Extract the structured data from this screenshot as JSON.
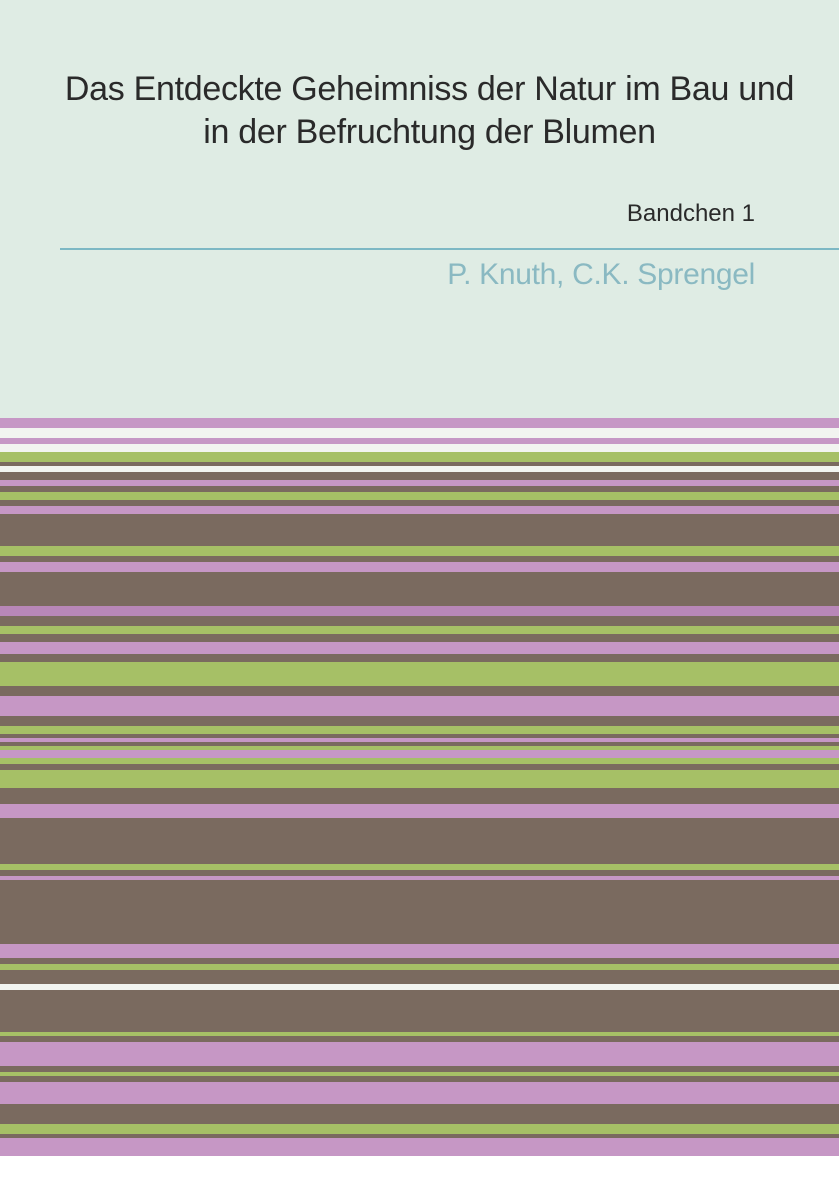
{
  "cover": {
    "title": "Das Entdeckte Geheimniss der Natur im Bau und in der Befruchtung der Blumen",
    "subtitle": "Bandchen 1",
    "authors": "P. Knuth, C.K. Sprengel",
    "top_background": "#dfece4",
    "divider_color": "#7db8c4",
    "title_color": "#2a2a2a",
    "subtitle_color": "#2a2a2a",
    "authors_color": "#8ab9c2",
    "title_fontsize": 34,
    "subtitle_fontsize": 24,
    "authors_fontsize": 30
  },
  "stripes": {
    "colors": {
      "pink": "#c697c5",
      "white": "#f2f4f0",
      "green": "#a6c066",
      "brown": "#7a6a5f",
      "purple": "#b887b8"
    },
    "pattern": [
      {
        "c": "pink",
        "h": 10
      },
      {
        "c": "white",
        "h": 10
      },
      {
        "c": "pink",
        "h": 6
      },
      {
        "c": "white",
        "h": 8
      },
      {
        "c": "green",
        "h": 10
      },
      {
        "c": "brown",
        "h": 4
      },
      {
        "c": "white",
        "h": 6
      },
      {
        "c": "brown",
        "h": 8
      },
      {
        "c": "pink",
        "h": 6
      },
      {
        "c": "brown",
        "h": 6
      },
      {
        "c": "green",
        "h": 8
      },
      {
        "c": "brown",
        "h": 6
      },
      {
        "c": "pink",
        "h": 8
      },
      {
        "c": "brown",
        "h": 32
      },
      {
        "c": "green",
        "h": 10
      },
      {
        "c": "brown",
        "h": 6
      },
      {
        "c": "pink",
        "h": 10
      },
      {
        "c": "brown",
        "h": 34
      },
      {
        "c": "purple",
        "h": 10
      },
      {
        "c": "brown",
        "h": 10
      },
      {
        "c": "green",
        "h": 8
      },
      {
        "c": "brown",
        "h": 8
      },
      {
        "c": "pink",
        "h": 12
      },
      {
        "c": "brown",
        "h": 8
      },
      {
        "c": "green",
        "h": 24
      },
      {
        "c": "brown",
        "h": 10
      },
      {
        "c": "pink",
        "h": 20
      },
      {
        "c": "brown",
        "h": 10
      },
      {
        "c": "green",
        "h": 8
      },
      {
        "c": "brown",
        "h": 4
      },
      {
        "c": "pink",
        "h": 4
      },
      {
        "c": "brown",
        "h": 4
      },
      {
        "c": "green",
        "h": 4
      },
      {
        "c": "pink",
        "h": 8
      },
      {
        "c": "green",
        "h": 6
      },
      {
        "c": "brown",
        "h": 6
      },
      {
        "c": "green",
        "h": 18
      },
      {
        "c": "brown",
        "h": 16
      },
      {
        "c": "pink",
        "h": 14
      },
      {
        "c": "brown",
        "h": 46
      },
      {
        "c": "green",
        "h": 6
      },
      {
        "c": "brown",
        "h": 6
      },
      {
        "c": "pink",
        "h": 4
      },
      {
        "c": "brown",
        "h": 64
      },
      {
        "c": "pink",
        "h": 14
      },
      {
        "c": "brown",
        "h": 6
      },
      {
        "c": "green",
        "h": 6
      },
      {
        "c": "brown",
        "h": 14
      },
      {
        "c": "white",
        "h": 6
      },
      {
        "c": "brown",
        "h": 42
      },
      {
        "c": "green",
        "h": 4
      },
      {
        "c": "brown",
        "h": 6
      },
      {
        "c": "pink",
        "h": 24
      },
      {
        "c": "brown",
        "h": 6
      },
      {
        "c": "green",
        "h": 4
      },
      {
        "c": "brown",
        "h": 6
      },
      {
        "c": "pink",
        "h": 22
      },
      {
        "c": "brown",
        "h": 20
      },
      {
        "c": "green",
        "h": 10
      },
      {
        "c": "brown",
        "h": 4
      },
      {
        "c": "pink",
        "h": 18
      }
    ]
  }
}
